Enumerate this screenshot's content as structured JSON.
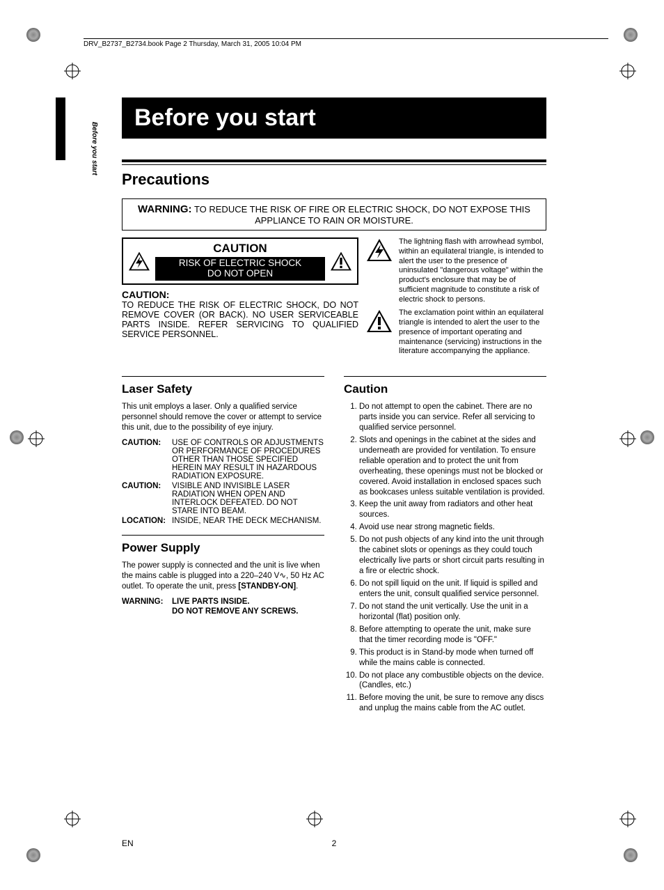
{
  "header": {
    "running": "DRV_B2737_B2734.book  Page 2  Thursday, March 31, 2005  10:04 PM"
  },
  "sideLabel": "Before you start",
  "title": "Before you start",
  "precautions": {
    "heading": "Precautions",
    "warningLabel": "WARNING:",
    "warningText": "TO REDUCE THE RISK OF FIRE OR ELECTRIC SHOCK, DO NOT EXPOSE THIS APPLIANCE TO RAIN OR MOISTURE.",
    "plate": {
      "caution": "CAUTION",
      "risk1": "RISK OF ELECTRIC SHOCK",
      "risk2": "DO NOT OPEN"
    },
    "cautionLabel": "CAUTION:",
    "cautionBody": "TO REDUCE THE RISK OF ELECTRIC SHOCK, DO NOT REMOVE COVER (OR BACK). NO USER SERVICEABLE PARTS INSIDE. REFER SERVICING TO QUALIFIED SERVICE PERSONNEL.",
    "boltDesc": "The lightning flash with arrowhead symbol, within an equilateral triangle, is intended to alert the user to the presence of uninsulated \"dangerous voltage\" within the product's enclosure that may be of sufficient magnitude to constitute a risk of electric shock to persons.",
    "exclDesc": "The exclamation point within an equilateral triangle is intended to alert the user to the presence of important operating and maintenance (servicing) instructions in the literature accompanying the appliance."
  },
  "laser": {
    "heading": "Laser Safety",
    "intro": "This unit employs a laser. Only a qualified service personnel should remove the cover or attempt to service this unit, due to the possibility of eye injury.",
    "rows": [
      {
        "k": "CAUTION:",
        "v": "USE OF CONTROLS OR ADJUSTMENTS OR PERFORMANCE OF PROCEDURES OTHER THAN THOSE SPECIFIED HEREIN MAY RESULT IN HAZARDOUS RADIATION EXPOSURE."
      },
      {
        "k": "CAUTION:",
        "v": "VISIBLE AND INVISIBLE LASER RADIATION WHEN OPEN AND INTERLOCK DEFEATED. DO NOT STARE INTO BEAM."
      },
      {
        "k": "LOCATION:",
        "v": "INSIDE, NEAR THE DECK MECHANISM."
      }
    ]
  },
  "power": {
    "heading": "Power Supply",
    "body1a": "The power supply is connected and the unit is live when the mains cable is plugged into a 220–240 V",
    "body1b": ", 50 Hz AC outlet. To operate the unit, press ",
    "standby": "[STANDBY-ON]",
    "body1c": ".",
    "warnLabel": "WARNING:",
    "warn1": "LIVE PARTS INSIDE.",
    "warn2": "DO NOT REMOVE ANY SCREWS."
  },
  "cautionSection": {
    "heading": "Caution",
    "items": [
      "Do not attempt to open the cabinet. There are no parts inside you can service. Refer all servicing to qualified service personnel.",
      "Slots and openings in the cabinet at the sides and underneath are provided for ventilation. To ensure reliable operation and to protect the unit from overheating, these openings must not be blocked or covered.\nAvoid installation in enclosed spaces such as bookcases unless suitable ventilation is provided.",
      "Keep the unit away from radiators and other heat sources.",
      "Avoid use near strong magnetic fields.",
      "Do not push objects of any kind into the unit through the cabinet slots or openings as they could touch electrically live parts or short circuit parts resulting in a fire or electric shock.",
      "Do not spill liquid on the unit. If liquid is spilled and enters the unit, consult qualified service personnel.",
      "Do not stand the unit vertically. Use the unit in a horizontal (flat) position only.",
      "Before attempting to operate the unit, make sure that the timer recording mode is \"OFF.\"",
      "This product is in Stand-by mode when turned off while the mains cable is connected.",
      "Do not place any combustible objects on the device. (Candles, etc.)",
      "Before moving the unit, be sure to remove any discs and unplug the mains cable from the AC outlet."
    ]
  },
  "footer": {
    "lang": "EN",
    "page": "2"
  },
  "colors": {
    "black": "#000000",
    "white": "#ffffff"
  }
}
